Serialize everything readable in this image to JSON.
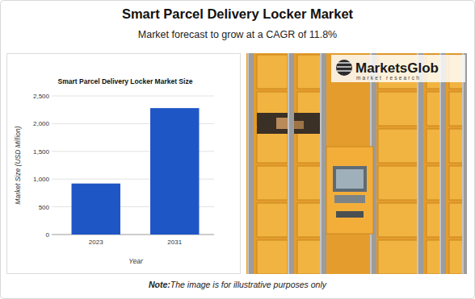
{
  "header": {
    "title": "Smart Parcel Delivery Locker Market",
    "subtitle": "Market forecast to grow at a CAGR of 11.8%"
  },
  "image": {
    "logo_name": "MarketsGlob",
    "logo_tagline": "market research"
  },
  "footer": {
    "note_label": "Note:",
    "note": "The image is for illustrative purposes only"
  },
  "chart_data": {
    "type": "bar",
    "title": "Smart Parcel Delivery Locker Market Size",
    "x_label": "Year",
    "y_label": "Market Size (USD Million)",
    "categories": [
      "2023",
      "2031"
    ],
    "values": [
      920,
      2280
    ],
    "color": "#1f56c6",
    "ylim": [
      0,
      2500
    ],
    "yticks": [
      0,
      500,
      {
        "value": 1000,
        "label": "1,000"
      },
      {
        "value": 1500,
        "label": "1,500"
      },
      {
        "value": 2000,
        "label": "2,000"
      },
      {
        "value": 2500,
        "label": "2,500"
      }
    ],
    "grid": true
  }
}
